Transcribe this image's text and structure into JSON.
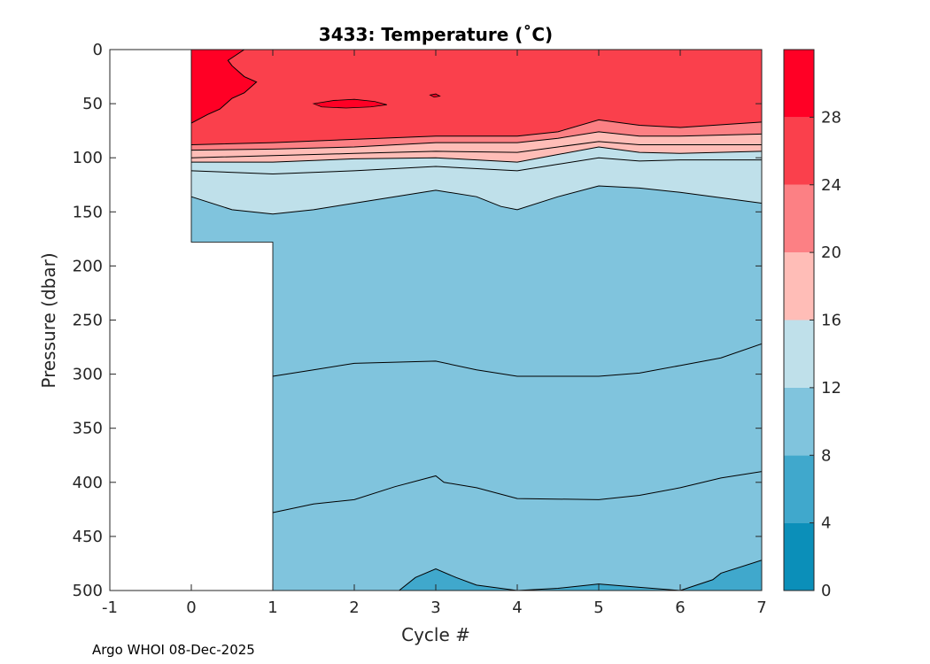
{
  "chart_data": {
    "type": "contourf",
    "title": "3433:  Temperature (˚C)",
    "xlabel": "Cycle #",
    "ylabel": "Pressure (dbar)",
    "xlim": [
      -1,
      7
    ],
    "ylim": [
      0,
      500
    ],
    "y_reversed": true,
    "x_ticks": [
      -1,
      0,
      1,
      2,
      3,
      4,
      5,
      6,
      7
    ],
    "x_tick_labels": [
      "-1",
      "0",
      "1",
      "2",
      "3",
      "4",
      "5",
      "6",
      "7"
    ],
    "y_ticks": [
      0,
      50,
      100,
      150,
      200,
      250,
      300,
      350,
      400,
      450,
      500
    ],
    "y_tick_labels": [
      "0",
      "50",
      "100",
      "150",
      "200",
      "250",
      "300",
      "350",
      "400",
      "450",
      "500"
    ],
    "colorbar": {
      "levels": [
        0,
        4,
        8,
        12,
        16,
        20,
        24,
        28,
        32
      ],
      "tick_values": [
        0,
        4,
        8,
        12,
        16,
        20,
        24,
        28
      ],
      "tick_labels": [
        "0",
        "4",
        "8",
        "12",
        "16",
        "20",
        "24",
        "28"
      ],
      "colors": [
        "#0b8fb9",
        "#40a8cc",
        "#80c4dd",
        "#bfe0ea",
        "#ffbdb7",
        "#fc8084",
        "#fa404c",
        "#ff0025"
      ]
    },
    "data_extent": {
      "x_range": [
        0,
        7
      ],
      "max_pressure_by_cycle": [
        {
          "x": 0,
          "p": 178
        },
        {
          "x": 1,
          "p": 500
        },
        {
          "x": 7,
          "p": 500
        }
      ]
    },
    "isotherms": [
      {
        "level": 28,
        "points": [
          [
            0,
            68
          ],
          [
            0.2,
            60
          ],
          [
            0.35,
            55
          ],
          [
            0.5,
            45
          ],
          [
            0.65,
            40
          ],
          [
            0.8,
            30
          ],
          [
            0.65,
            25
          ],
          [
            0.5,
            15
          ],
          [
            0.45,
            10
          ],
          [
            0.55,
            5
          ],
          [
            0.65,
            0
          ]
        ]
      },
      {
        "level": 24,
        "points": [
          [
            0,
            88
          ],
          [
            1,
            86
          ],
          [
            2,
            83
          ],
          [
            3,
            80
          ],
          [
            4,
            80
          ],
          [
            4.5,
            76
          ],
          [
            5,
            65
          ],
          [
            5.5,
            70
          ],
          [
            6,
            72
          ],
          [
            7,
            67
          ]
        ]
      },
      {
        "level": 20,
        "points": [
          [
            0,
            93
          ],
          [
            1,
            92
          ],
          [
            2,
            90
          ],
          [
            3,
            86
          ],
          [
            4,
            86
          ],
          [
            4.5,
            82
          ],
          [
            5,
            76
          ],
          [
            5.5,
            80
          ],
          [
            6,
            80
          ],
          [
            7,
            78
          ]
        ]
      },
      {
        "level": 16,
        "points": [
          [
            0,
            100
          ],
          [
            1,
            98
          ],
          [
            2,
            96
          ],
          [
            3,
            94
          ],
          [
            4,
            95
          ],
          [
            4.5,
            90
          ],
          [
            5,
            85
          ],
          [
            5.5,
            88
          ],
          [
            6,
            88
          ],
          [
            7,
            88
          ]
        ]
      },
      {
        "level": 14,
        "points": [
          [
            0,
            104
          ],
          [
            1,
            104
          ],
          [
            2,
            101
          ],
          [
            3,
            100
          ],
          [
            4,
            104
          ],
          [
            4.5,
            97
          ],
          [
            5,
            90
          ],
          [
            5.5,
            95
          ],
          [
            6,
            96
          ],
          [
            7,
            94
          ]
        ]
      },
      {
        "level": 12,
        "points": [
          [
            0,
            112
          ],
          [
            1,
            115
          ],
          [
            2,
            112
          ],
          [
            3,
            108
          ],
          [
            4,
            112
          ],
          [
            4.5,
            106
          ],
          [
            5,
            100
          ],
          [
            5.5,
            103
          ],
          [
            6,
            102
          ],
          [
            7,
            102
          ]
        ]
      },
      {
        "level": 10,
        "points": [
          [
            0,
            136
          ],
          [
            0.5,
            148
          ],
          [
            1,
            152
          ],
          [
            1.5,
            148
          ],
          [
            2,
            142
          ],
          [
            3,
            130
          ],
          [
            3.5,
            136
          ],
          [
            3.8,
            145
          ],
          [
            4,
            148
          ],
          [
            4.5,
            136
          ],
          [
            5,
            126
          ],
          [
            5.5,
            128
          ],
          [
            6,
            132
          ],
          [
            7,
            142
          ]
        ]
      },
      {
        "level": 8,
        "points": [
          [
            1,
            302
          ],
          [
            1.5,
            296
          ],
          [
            2,
            290
          ],
          [
            3,
            288
          ],
          [
            3.5,
            296
          ],
          [
            4,
            302
          ],
          [
            5,
            302
          ],
          [
            5.5,
            299
          ],
          [
            6,
            292
          ],
          [
            6.5,
            285
          ],
          [
            7,
            272
          ]
        ]
      },
      {
        "level": 6,
        "points": [
          [
            1,
            428
          ],
          [
            1.5,
            420
          ],
          [
            2,
            416
          ],
          [
            2.5,
            404
          ],
          [
            3,
            394
          ],
          [
            3.1,
            400
          ],
          [
            3.5,
            405
          ],
          [
            4,
            415
          ],
          [
            5,
            416
          ],
          [
            5.5,
            412
          ],
          [
            6,
            405
          ],
          [
            6.5,
            396
          ],
          [
            7,
            390
          ]
        ]
      },
      {
        "level": 5,
        "points": [
          [
            2.55,
            500
          ],
          [
            2.75,
            488
          ],
          [
            3,
            480
          ],
          [
            3.25,
            488
          ],
          [
            3.5,
            495
          ],
          [
            4,
            500
          ],
          [
            4.5,
            498
          ],
          [
            5,
            494
          ],
          [
            5.5,
            497
          ],
          [
            6,
            500
          ],
          [
            6.4,
            490
          ],
          [
            6.5,
            484
          ],
          [
            7,
            472
          ]
        ]
      }
    ],
    "warm_patches": [
      {
        "level": 28,
        "points": [
          [
            1.5,
            50
          ],
          [
            1.75,
            47
          ],
          [
            2,
            46
          ],
          [
            2.25,
            48
          ],
          [
            2.4,
            51
          ],
          [
            2.2,
            53
          ],
          [
            1.9,
            54
          ],
          [
            1.6,
            53
          ]
        ]
      },
      {
        "level": 28,
        "points": [
          [
            2.93,
            42
          ],
          [
            3.0,
            41
          ],
          [
            3.05,
            43
          ],
          [
            2.98,
            44
          ]
        ]
      }
    ]
  },
  "footer": {
    "credit": "Argo WHOI 08-Dec-2025"
  }
}
